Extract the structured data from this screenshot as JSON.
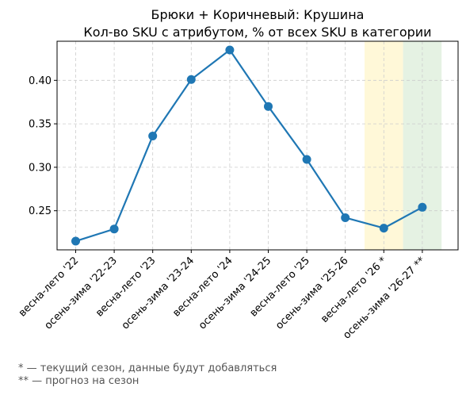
{
  "chart_data": {
    "type": "line",
    "title_lines": [
      "Брюки + Коричневый: Крушина",
      "Кол-во SKU с атрибутом, % от всех SKU в категории"
    ],
    "xlabel": "",
    "ylabel": "",
    "categories": [
      "весна-лето '22",
      "осень-зима '22-23",
      "весна-лето '23",
      "осень-зима '23-24",
      "весна-лето '24",
      "осень-зима '24-25",
      "весна-лето '25",
      "осень-зима '25-26",
      "весна-лето '26 *",
      "осень-зима '26-27 **"
    ],
    "series": [
      {
        "values": [
          0.215,
          0.229,
          0.336,
          0.401,
          0.435,
          0.37,
          0.309,
          0.242,
          0.23,
          0.254
        ],
        "color": "#1f77b4"
      }
    ],
    "ylim": [
      0.205,
      0.445
    ],
    "yticks": [
      0.25,
      0.3,
      0.35,
      0.4
    ],
    "ytick_labels": [
      "0.25",
      "0.30",
      "0.35",
      "0.40"
    ],
    "grid": true,
    "highlight_bands": [
      {
        "category_index": 8,
        "meaning": "current season",
        "color": "#fff8d8"
      },
      {
        "category_index": 9,
        "meaning": "forecast",
        "color": "#e5f2e3"
      }
    ]
  },
  "footnotes": {
    "current": "* — текущий сезон, данные будут добавляться",
    "forecast": "** — прогноз на сезон"
  }
}
